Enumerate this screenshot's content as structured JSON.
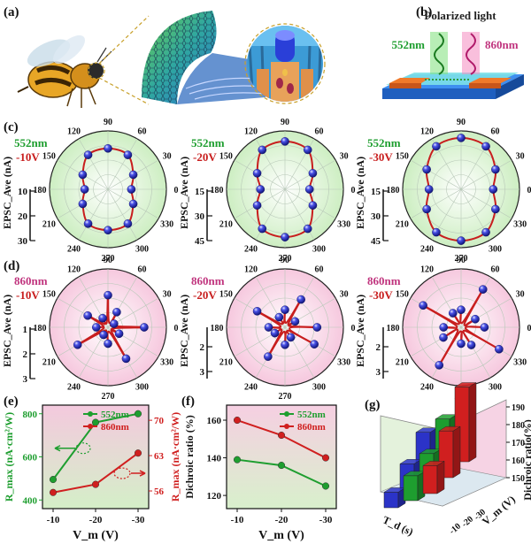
{
  "panels": {
    "a": {
      "label": "(a)"
    },
    "b": {
      "label": "(b)",
      "title": "Polarized light",
      "wl1": "552nm",
      "wl2": "860nm"
    },
    "c": {
      "label": "(c)"
    },
    "d": {
      "label": "(d)"
    },
    "e": {
      "label": "(e)"
    },
    "f": {
      "label": "(f)"
    },
    "g": {
      "label": "(g)"
    }
  },
  "colors": {
    "green": "#1e9e2f",
    "red": "#d01f1f",
    "magenta": "#c0347e",
    "blue": "#2b33c8",
    "greenbg": "#e3f5dc",
    "pinkbg": "#f9dbe9"
  },
  "polar_angle_labels": [
    "90",
    "60",
    "30",
    "0",
    "330",
    "300",
    "270",
    "240",
    "210",
    "180",
    "150",
    "120"
  ],
  "chart_data": [
    {
      "type": "polar",
      "panel": "c",
      "wavelength": "552nm",
      "voltage": "-10V",
      "ylabel": "EPSC_Ave (nA)",
      "scale_ticks": [
        "10",
        "20",
        "30"
      ],
      "shape": "dipole-vertical",
      "points": [
        {
          "angle": 0,
          "r": 0.4
        },
        {
          "angle": 30,
          "r": 0.5
        },
        {
          "angle": 60,
          "r": 0.68
        },
        {
          "angle": 90,
          "r": 0.7
        },
        {
          "angle": 120,
          "r": 0.68
        },
        {
          "angle": 150,
          "r": 0.5
        },
        {
          "angle": 180,
          "r": 0.4
        },
        {
          "angle": 210,
          "r": 0.5
        },
        {
          "angle": 240,
          "r": 0.68
        },
        {
          "angle": 270,
          "r": 0.7
        },
        {
          "angle": 300,
          "r": 0.68
        },
        {
          "angle": 330,
          "r": 0.5
        }
      ]
    },
    {
      "type": "polar",
      "panel": "c",
      "wavelength": "552nm",
      "voltage": "-20V",
      "ylabel": "EPSC_Ave (nA)",
      "scale_ticks": [
        "15",
        "30",
        "45"
      ],
      "shape": "dipole-vertical",
      "points": [
        {
          "angle": 0,
          "r": 0.42
        },
        {
          "angle": 30,
          "r": 0.55
        },
        {
          "angle": 60,
          "r": 0.78
        },
        {
          "angle": 90,
          "r": 0.82
        },
        {
          "angle": 120,
          "r": 0.78
        },
        {
          "angle": 150,
          "r": 0.55
        },
        {
          "angle": 180,
          "r": 0.42
        },
        {
          "angle": 210,
          "r": 0.55
        },
        {
          "angle": 240,
          "r": 0.78
        },
        {
          "angle": 270,
          "r": 0.82
        },
        {
          "angle": 300,
          "r": 0.78
        },
        {
          "angle": 330,
          "r": 0.55
        }
      ]
    },
    {
      "type": "polar",
      "panel": "c",
      "wavelength": "552nm",
      "voltage": "-30V",
      "ylabel": "EPSC_Ave (nA)",
      "scale_ticks": [
        "15",
        "30",
        "45"
      ],
      "shape": "dipole-vertical",
      "points": [
        {
          "angle": 0,
          "r": 0.55
        },
        {
          "angle": 30,
          "r": 0.68
        },
        {
          "angle": 60,
          "r": 0.85
        },
        {
          "angle": 90,
          "r": 0.88
        },
        {
          "angle": 120,
          "r": 0.85
        },
        {
          "angle": 150,
          "r": 0.68
        },
        {
          "angle": 180,
          "r": 0.55
        },
        {
          "angle": 210,
          "r": 0.68
        },
        {
          "angle": 240,
          "r": 0.85
        },
        {
          "angle": 270,
          "r": 0.88
        },
        {
          "angle": 300,
          "r": 0.85
        },
        {
          "angle": 330,
          "r": 0.68
        }
      ]
    },
    {
      "type": "polar",
      "panel": "d",
      "wavelength": "860nm",
      "voltage": "-10V",
      "ylabel": "EPSC_Ave (nA)",
      "scale_ticks": [
        "1",
        "2",
        "3"
      ],
      "shape": "four-lobe",
      "points": [
        {
          "angle": 0,
          "r": 0.62
        },
        {
          "angle": 30,
          "r": 0.12
        },
        {
          "angle": 60,
          "r": 0.3
        },
        {
          "angle": 90,
          "r": 0.55
        },
        {
          "angle": 120,
          "r": 0.18
        },
        {
          "angle": 150,
          "r": 0.4
        },
        {
          "angle": 180,
          "r": 0.2
        },
        {
          "angle": 210,
          "r": 0.6
        },
        {
          "angle": 240,
          "r": 0.15
        },
        {
          "angle": 270,
          "r": 0.28
        },
        {
          "angle": 300,
          "r": 0.62
        },
        {
          "angle": 330,
          "r": 0.22
        }
      ]
    },
    {
      "type": "polar",
      "panel": "d",
      "wavelength": "860nm",
      "voltage": "-20V",
      "ylabel": "EPSC_Ave (nA)",
      "scale_ticks": [
        "2",
        "3"
      ],
      "shape": "four-lobe",
      "points": [
        {
          "angle": 0,
          "r": 0.55
        },
        {
          "angle": 30,
          "r": 0.2
        },
        {
          "angle": 60,
          "r": 0.55
        },
        {
          "angle": 90,
          "r": 0.3
        },
        {
          "angle": 120,
          "r": 0.2
        },
        {
          "angle": 150,
          "r": 0.55
        },
        {
          "angle": 180,
          "r": 0.28
        },
        {
          "angle": 210,
          "r": 0.2
        },
        {
          "angle": 240,
          "r": 0.58
        },
        {
          "angle": 270,
          "r": 0.3
        },
        {
          "angle": 300,
          "r": 0.2
        },
        {
          "angle": 330,
          "r": 0.58
        }
      ]
    },
    {
      "type": "polar",
      "panel": "d",
      "wavelength": "860nm",
      "voltage": "-30V",
      "ylabel": "EPSC_Ave (nA)",
      "scale_ticks": [
        "2",
        "3"
      ],
      "shape": "four-lobe",
      "points": [
        {
          "angle": 0,
          "r": 0.4
        },
        {
          "angle": 30,
          "r": 0.28
        },
        {
          "angle": 60,
          "r": 0.75
        },
        {
          "angle": 90,
          "r": 0.3
        },
        {
          "angle": 120,
          "r": 0.28
        },
        {
          "angle": 150,
          "r": 0.75
        },
        {
          "angle": 180,
          "r": 0.3
        },
        {
          "angle": 210,
          "r": 0.35
        },
        {
          "angle": 240,
          "r": 0.75
        },
        {
          "angle": 270,
          "r": 0.28
        },
        {
          "angle": 300,
          "r": 0.35
        },
        {
          "angle": 330,
          "r": 0.75
        }
      ]
    },
    {
      "type": "line",
      "panel": "e",
      "x": [
        -10,
        -20,
        -30
      ],
      "xticks": [
        "-10",
        "-20",
        "-30"
      ],
      "xlabel": "V_m (V)",
      "y1label": "R_max (nA·cm²/W)",
      "y1ticks": [
        "400",
        "600",
        "800"
      ],
      "y1lim": [
        360,
        840
      ],
      "y2label": "R_max (nA·cm²/W)",
      "y2ticks": [
        "56",
        "63",
        "70"
      ],
      "y2lim": [
        52.5,
        73
      ],
      "series": [
        {
          "name": "552nm",
          "axis": "left",
          "color": "#1e9e2f",
          "values": [
            495,
            760,
            800
          ]
        },
        {
          "name": "860nm",
          "axis": "right",
          "color": "#d01f1f",
          "values": [
            55.7,
            57.3,
            63.5
          ]
        }
      ]
    },
    {
      "type": "line",
      "panel": "f",
      "x": [
        -10,
        -20,
        -30
      ],
      "xticks": [
        "-10",
        "-20",
        "-30"
      ],
      "xlabel": "V_m (V)",
      "ylabel": "Dichroic ratio (%)",
      "yticks": [
        "120",
        "140",
        "160"
      ],
      "ylim": [
        113,
        168
      ],
      "series": [
        {
          "name": "552nm",
          "color": "#1e9e2f",
          "values": [
            139,
            136,
            125
          ]
        },
        {
          "name": "860nm",
          "color": "#d01f1f",
          "values": [
            160,
            152,
            140
          ]
        }
      ]
    },
    {
      "type": "bar3d",
      "panel": "g",
      "zlabel": "Dichroic ratio(%)",
      "zticks": [
        "150",
        "160",
        "170",
        "180",
        "190"
      ],
      "zlim": [
        140,
        190
      ],
      "xlabel": "T_d (s)",
      "ylabel": "V_m (V)",
      "y_ticks": [
        "-10",
        "-20",
        "-30"
      ],
      "bars": [
        {
          "color": "#2b33c8",
          "value": 168
        },
        {
          "color": "#1e9e2f",
          "value": 172
        },
        {
          "color": "#d01f1f",
          "value": 188
        },
        {
          "color": "#2b33c8",
          "value": 158
        },
        {
          "color": "#1e9e2f",
          "value": 160
        },
        {
          "color": "#d01f1f",
          "value": 170
        },
        {
          "color": "#2b33c8",
          "value": 150
        },
        {
          "color": "#1e9e2f",
          "value": 156
        },
        {
          "color": "#d01f1f",
          "value": 158
        }
      ]
    }
  ]
}
